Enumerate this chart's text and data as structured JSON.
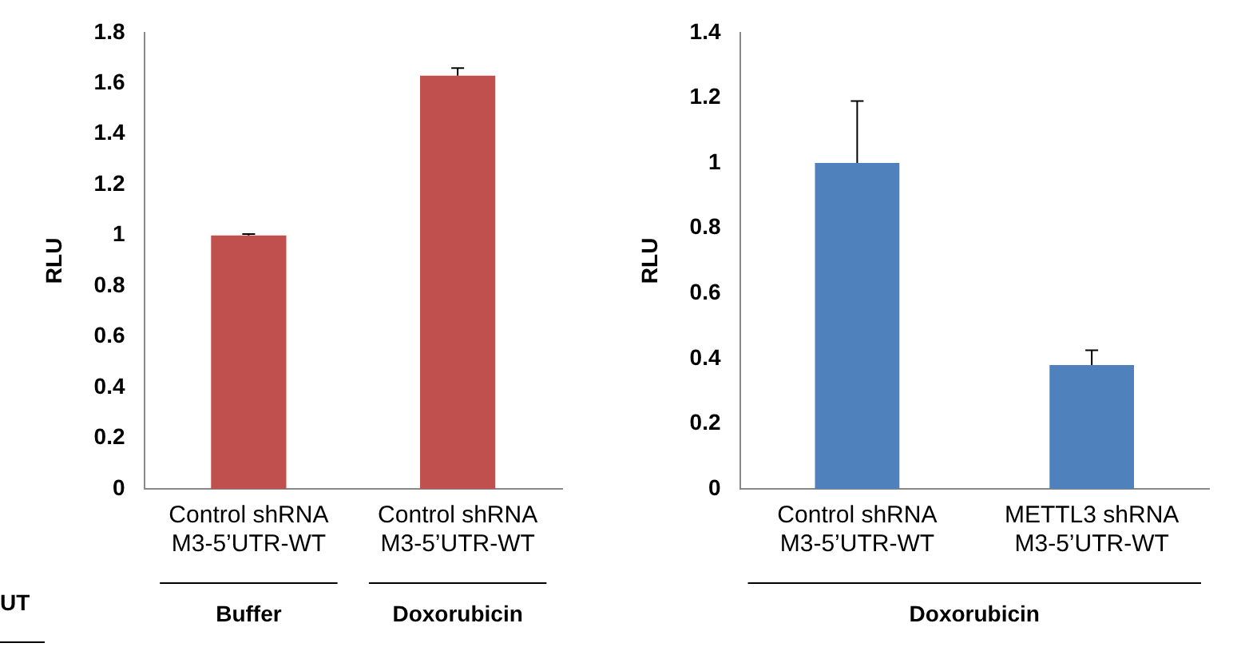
{
  "chart_data": [
    {
      "type": "bar",
      "ylabel": "RLU",
      "categories": [
        "Control shRNA\nM3-5’UTR-WT",
        "Control shRNA\nM3-5’UTR-WT"
      ],
      "values": [
        1.0,
        1.63
      ],
      "errors": [
        [
          1.0,
          1.005
        ],
        [
          1.63,
          1.66
        ]
      ],
      "color": "#c0504d",
      "ylim": [
        0,
        1.8
      ],
      "yticks": [
        0,
        0.2,
        0.4,
        0.6,
        0.8,
        1,
        1.2,
        1.4,
        1.6,
        1.8
      ],
      "grid": false,
      "legend": false,
      "annotations": [
        "UT",
        "Buffer",
        "Doxorubicin"
      ]
    },
    {
      "type": "bar",
      "ylabel": "RLU",
      "categories": [
        "Control shRNA\nM3-5’UTR-WT",
        "METTL3 shRNA\nM3-5’UTR-WT"
      ],
      "values": [
        1.0,
        0.38
      ],
      "errors": [
        [
          1.0,
          1.19
        ],
        [
          0.38,
          0.425
        ]
      ],
      "color": "#4f81bd",
      "ylim": [
        0,
        1.4
      ],
      "yticks": [
        0,
        0.2,
        0.4,
        0.6,
        0.8,
        1,
        1.2,
        1.4
      ],
      "grid": false,
      "legend": false,
      "annotations": [
        "Doxorubicin"
      ]
    }
  ]
}
